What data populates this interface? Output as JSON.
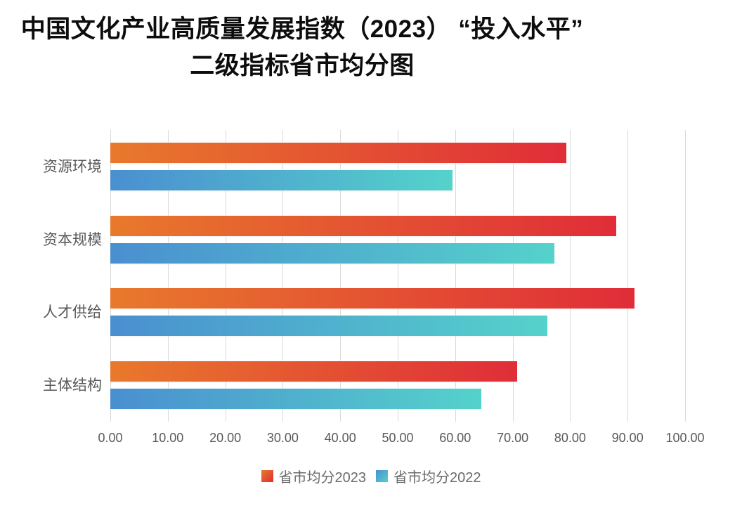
{
  "title": {
    "line1": "中国文化产业高质量发展指数（2023） “投入水平”",
    "line2": "二级指标省市均分图"
  },
  "chart_data": {
    "type": "bar",
    "orientation": "horizontal",
    "title": "中国文化产业高质量发展指数（2023）“投入水平”二级指标省市均分图",
    "categories": [
      "资源环境",
      "资本规模",
      "人才供给",
      "主体结构"
    ],
    "series": [
      {
        "name": "省市均分2023",
        "values": [
          79.4,
          88.0,
          91.2,
          70.8
        ],
        "color_start": "#e8792c",
        "color_end": "#e02d38"
      },
      {
        "name": "省市均分2022",
        "values": [
          59.5,
          77.3,
          76.0,
          64.5
        ],
        "color_start": "#4a8fd0",
        "color_end": "#55d2cb"
      }
    ],
    "xlim": [
      0,
      100
    ],
    "x_ticks": [
      "0.00",
      "10.00",
      "20.00",
      "30.00",
      "40.00",
      "50.00",
      "60.00",
      "70.00",
      "80.00",
      "90.00",
      "100.00"
    ],
    "grid": true,
    "legend_position": "bottom"
  },
  "colors": {
    "gridline": "#d9d9d9",
    "axis_text": "#595959",
    "title_text": "#0d0d0d"
  }
}
